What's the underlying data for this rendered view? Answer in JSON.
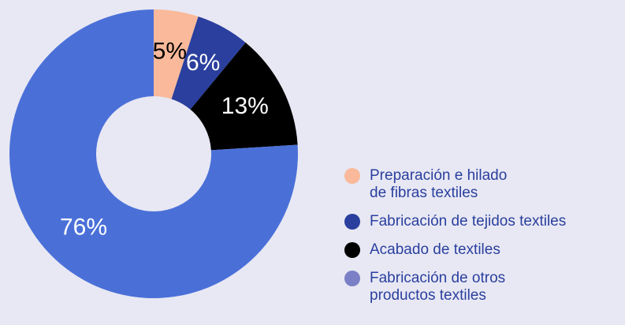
{
  "chart_data": {
    "type": "pie",
    "categories": [
      "Preparación e hilado\nde fibras textiles",
      "Fabricación de tejidos textiles",
      "Acabado de textiles",
      "Fabricación de otros\nproductos textiles"
    ],
    "values": [
      5,
      6,
      13,
      76
    ],
    "value_labels": [
      "5%",
      "6%",
      "13%",
      "76%"
    ],
    "colors": [
      "#f9b99a",
      "#2a3f9e",
      "#000000",
      "#4a70d8"
    ],
    "legend_colors": [
      "#f9b99a",
      "#2a3f9e",
      "#000000",
      "#7b80c6"
    ],
    "label_colors": [
      "#000000",
      "#ffffff",
      "#ffffff",
      "#ffffff"
    ],
    "donut": true,
    "legend": "right"
  }
}
